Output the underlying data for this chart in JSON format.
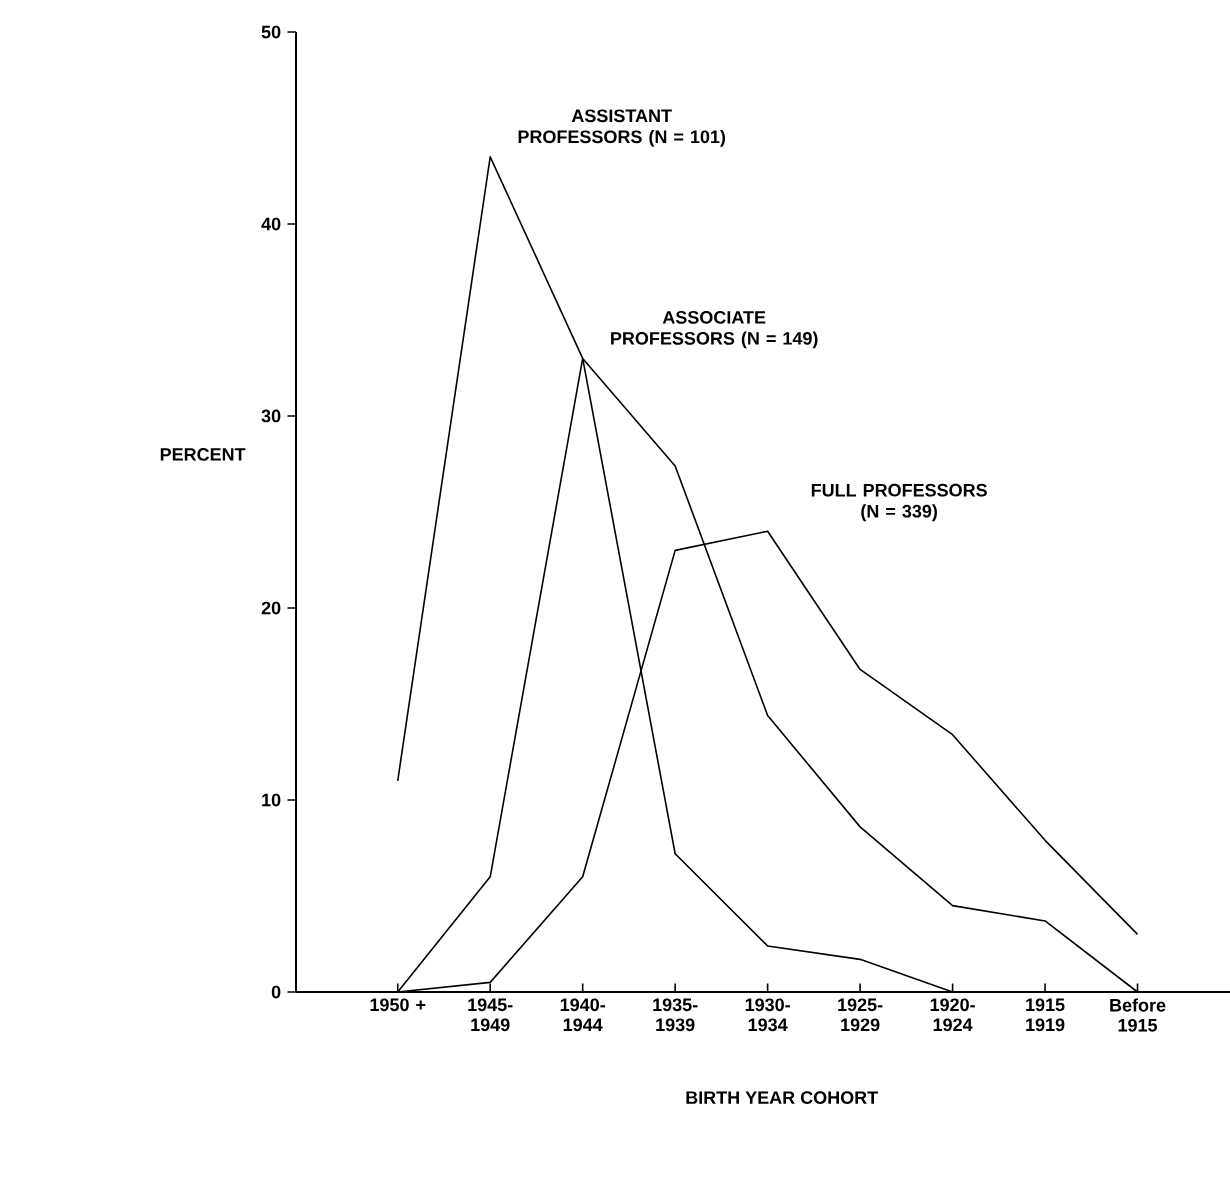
{
  "chart_data": {
    "type": "line",
    "xlabel": "BIRTH YEAR COHORT",
    "ylabel": "PERCENT",
    "categories": [
      "1950 +",
      "1945-1949",
      "1940-1944",
      "1935-1939",
      "1930-1934",
      "1925-1929",
      "1920-1924",
      "1915 1919",
      "Before 1915"
    ],
    "series": [
      {
        "name": "ASSISTANT PROFESSORS (N = 101)",
        "color": "#000000",
        "values": [
          11,
          43.5,
          33,
          7.2,
          2.4,
          1.7,
          0,
          null,
          null
        ]
      },
      {
        "name": "ASSOCIATE PROFESSORS (N = 149)",
        "color": "#000000",
        "values": [
          0,
          6,
          33,
          27.4,
          14.4,
          8.6,
          4.5,
          3.7,
          0
        ]
      },
      {
        "name": "FULL PROFESSORS (N = 339)",
        "color": "#000000",
        "values": [
          0,
          0.5,
          6,
          23,
          24,
          16.8,
          13.4,
          7.9,
          3
        ]
      }
    ],
    "ylim": [
      0,
      50
    ],
    "yticks": [
      0,
      10,
      20,
      30,
      40,
      50
    ],
    "grid": false,
    "legend": false
  }
}
